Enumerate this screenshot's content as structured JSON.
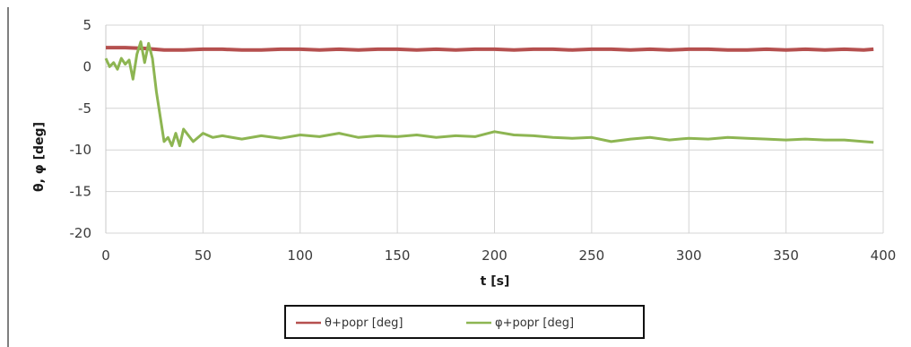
{
  "chart_data": {
    "type": "line",
    "title": "",
    "xlabel": "t [s]",
    "ylabel": "θ, φ [deg]",
    "xlim": [
      0,
      400
    ],
    "ylim": [
      -20,
      5
    ],
    "xticks": [
      0,
      50,
      100,
      150,
      200,
      250,
      300,
      350,
      400
    ],
    "yticks": [
      5,
      0,
      -5,
      -10,
      -15,
      -20
    ],
    "xtick_labels": [
      "0",
      "50",
      "100",
      "150",
      "200",
      "250",
      "300",
      "350",
      "400"
    ],
    "ytick_labels": [
      "5",
      "0",
      "-5",
      "-10",
      "-15",
      "-20"
    ],
    "grid": true,
    "legend_position": "bottom-center",
    "series": [
      {
        "name": "θ+popr  [deg]",
        "color": "#b5504f",
        "x": [
          0,
          10,
          20,
          25,
          30,
          40,
          50,
          60,
          70,
          80,
          90,
          100,
          110,
          120,
          130,
          140,
          150,
          160,
          170,
          180,
          190,
          200,
          210,
          220,
          230,
          240,
          250,
          260,
          270,
          280,
          290,
          300,
          310,
          320,
          330,
          340,
          350,
          360,
          370,
          380,
          390,
          395
        ],
        "y": [
          2.3,
          2.3,
          2.2,
          2.1,
          2.0,
          2.0,
          2.1,
          2.1,
          2.0,
          2.0,
          2.1,
          2.1,
          2.0,
          2.1,
          2.0,
          2.1,
          2.1,
          2.0,
          2.1,
          2.0,
          2.1,
          2.1,
          2.0,
          2.1,
          2.1,
          2.0,
          2.1,
          2.1,
          2.0,
          2.1,
          2.0,
          2.1,
          2.1,
          2.0,
          2.0,
          2.1,
          2.0,
          2.1,
          2.0,
          2.1,
          2.0,
          2.1
        ]
      },
      {
        "name": "φ+popr [deg]",
        "color": "#8db552",
        "x": [
          0,
          2,
          4,
          6,
          8,
          10,
          12,
          14,
          16,
          18,
          20,
          22,
          24,
          26,
          28,
          30,
          32,
          34,
          36,
          38,
          40,
          45,
          50,
          55,
          60,
          70,
          80,
          90,
          100,
          110,
          120,
          130,
          140,
          150,
          160,
          170,
          180,
          190,
          200,
          210,
          220,
          230,
          240,
          250,
          260,
          270,
          280,
          290,
          300,
          310,
          320,
          330,
          340,
          350,
          360,
          370,
          380,
          390,
          395
        ],
        "y": [
          1.0,
          0.0,
          0.5,
          -0.3,
          1.0,
          0.3,
          0.8,
          -1.5,
          1.5,
          3.0,
          0.5,
          2.8,
          1.0,
          -3.0,
          -6.0,
          -9.0,
          -8.5,
          -9.5,
          -8.0,
          -9.5,
          -7.5,
          -9.0,
          -8.0,
          -8.5,
          -8.3,
          -8.7,
          -8.3,
          -8.6,
          -8.2,
          -8.4,
          -8.0,
          -8.5,
          -8.3,
          -8.4,
          -8.2,
          -8.5,
          -8.3,
          -8.4,
          -7.8,
          -8.2,
          -8.3,
          -8.5,
          -8.6,
          -8.5,
          -9.0,
          -8.7,
          -8.5,
          -8.8,
          -8.6,
          -8.7,
          -8.5,
          -8.6,
          -8.7,
          -8.8,
          -8.7,
          -8.8,
          -8.8,
          -9.0,
          -9.1
        ]
      }
    ]
  }
}
